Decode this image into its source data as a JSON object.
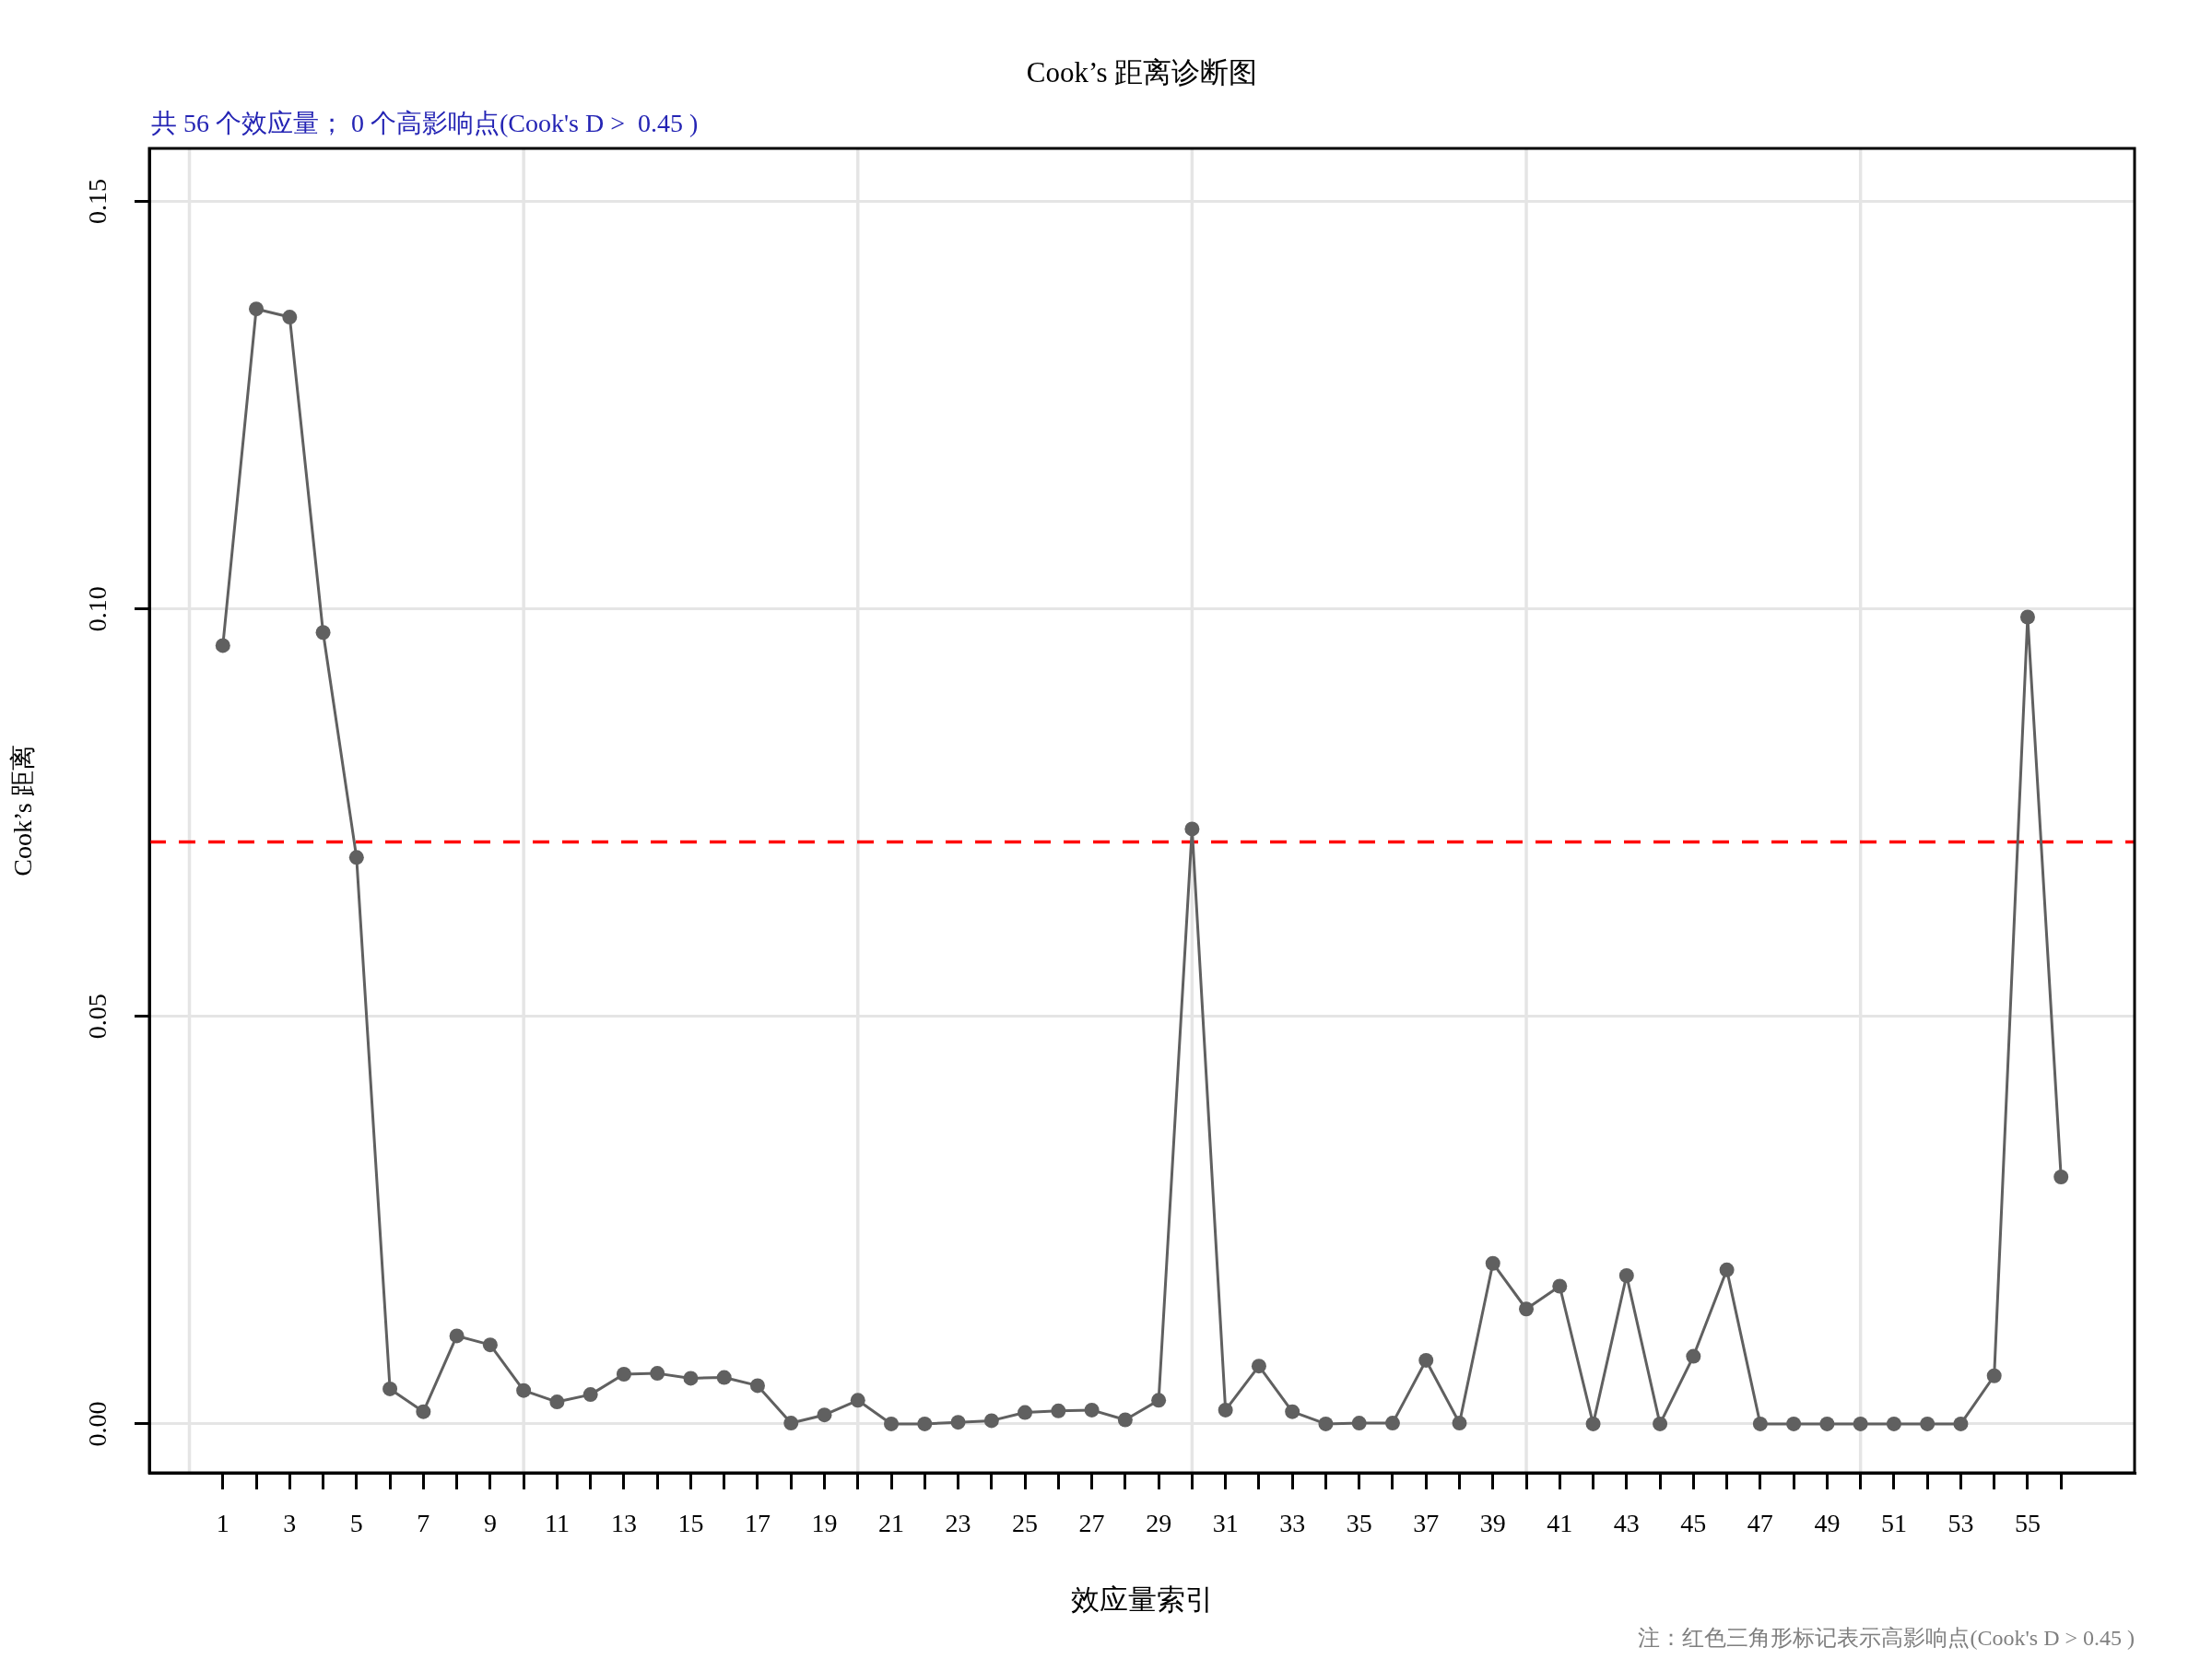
{
  "chart_data": {
    "type": "line",
    "title": "Cook’s 距离诊断图",
    "subtitle": "共 56 个效应量； 0 个高影响点(Cook's D >  0.45 )",
    "xlabel": "效应量索引",
    "ylabel": "Cook’s 距离",
    "annotations": [
      "注：红色三角形标记表示高影响点(Cook's D > 0.45 )"
    ],
    "x": [
      1,
      2,
      3,
      4,
      5,
      6,
      7,
      8,
      9,
      10,
      11,
      12,
      13,
      14,
      15,
      16,
      17,
      18,
      19,
      20,
      21,
      22,
      23,
      24,
      25,
      26,
      27,
      28,
      29,
      30,
      31,
      32,
      33,
      34,
      35,
      36,
      37,
      38,
      39,
      40,
      41,
      42,
      43,
      44,
      45,
      46,
      47,
      48,
      49,
      50,
      51,
      52,
      53,
      54,
      55,
      56
    ],
    "series": [
      {
        "color": "#606060",
        "values": [
          0.0955,
          0.1368,
          0.1358,
          0.0971,
          0.0695,
          0.0043,
          0.0015,
          0.0108,
          0.0097,
          0.0041,
          0.0027,
          0.0036,
          0.0061,
          0.0062,
          0.0056,
          0.0057,
          0.0047,
          0.0001,
          0.0011,
          0.0029,
          0,
          0,
          0.0002,
          0.0004,
          0.0014,
          0.0016,
          0.0017,
          0.0005,
          0.0029,
          0.073,
          0.0017,
          0.0071,
          0.0015,
          0,
          0.0001,
          0.0001,
          0.0078,
          0.0001,
          0.0197,
          0.0141,
          0.0169,
          0,
          0.0182,
          0,
          0.0083,
          0.0189,
          0,
          0,
          0,
          0,
          0,
          0,
          0,
          0.0059,
          0.099,
          0.0303
        ]
      }
    ],
    "marker": "circle",
    "line_style": "solid",
    "xlim": [
      -1.2,
      58.2
    ],
    "xticks": [
      1,
      {
        "value": 2,
        "label": null
      },
      3,
      {
        "value": 4,
        "label": null
      },
      5,
      {
        "value": 6,
        "label": null
      },
      7,
      {
        "value": 8,
        "label": null
      },
      9,
      {
        "value": 10,
        "label": null
      },
      11,
      {
        "value": 12,
        "label": null
      },
      13,
      {
        "value": 14,
        "label": null
      },
      15,
      {
        "value": 16,
        "label": null
      },
      17,
      {
        "value": 18,
        "label": null
      },
      19,
      {
        "value": 20,
        "label": null
      },
      21,
      {
        "value": 22,
        "label": null
      },
      23,
      {
        "value": 24,
        "label": null
      },
      25,
      {
        "value": 26,
        "label": null
      },
      27,
      {
        "value": 28,
        "label": null
      },
      29,
      {
        "value": 30,
        "label": null
      },
      31,
      {
        "value": 32,
        "label": null
      },
      33,
      {
        "value": 34,
        "label": null
      },
      35,
      {
        "value": 36,
        "label": null
      },
      37,
      {
        "value": 38,
        "label": null
      },
      39,
      {
        "value": 40,
        "label": null
      },
      41,
      {
        "value": 42,
        "label": null
      },
      43,
      {
        "value": 44,
        "label": null
      },
      45,
      {
        "value": 46,
        "label": null
      },
      47,
      {
        "value": 48,
        "label": null
      },
      49,
      {
        "value": 50,
        "label": null
      },
      51,
      {
        "value": 52,
        "label": null
      },
      53,
      {
        "value": 54,
        "label": null
      },
      55,
      {
        "value": 56,
        "label": null
      }
    ],
    "ylim": [
      -0.006,
      0.1565
    ],
    "yticks": [
      {
        "value": 0,
        "label": "0.00"
      },
      0.05,
      {
        "value": 0.1,
        "label": "0.10"
      },
      0.15
    ],
    "grid": "y",
    "ref_lines": [
      {
        "axis": "x",
        "value": 0,
        "color": "#e5e5e5"
      },
      {
        "axis": "x",
        "value": 10,
        "color": "#e5e5e5"
      },
      {
        "axis": "x",
        "value": 20,
        "color": "#e5e5e5"
      },
      {
        "axis": "x",
        "value": 30,
        "color": "#e5e5e5"
      },
      {
        "axis": "x",
        "value": 40,
        "color": "#e5e5e5"
      },
      {
        "axis": "x",
        "value": 50,
        "color": "#e5e5e5"
      },
      {
        "axis": "y",
        "value": 0.0714,
        "color": "#ff0000",
        "line_style": "dashed"
      }
    ]
  }
}
